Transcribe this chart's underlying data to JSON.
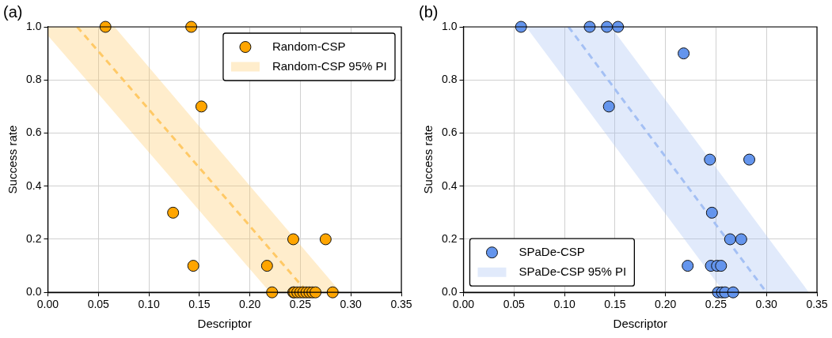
{
  "chart_data": [
    {
      "type": "scatter",
      "title": "(a)",
      "xlabel": "Descriptor",
      "ylabel": "Success rate",
      "xlim": [
        0,
        0.35
      ],
      "xticks": [
        {
          "value": 0,
          "label": "0.00"
        },
        {
          "value": 0.05,
          "label": "0.05"
        },
        {
          "value": 0.1,
          "label": "0.10"
        },
        {
          "value": 0.15,
          "label": "0.15"
        },
        {
          "value": 0.2,
          "label": "0.20"
        },
        {
          "value": 0.25,
          "label": "0.25"
        },
        {
          "value": 0.3,
          "label": "0.30"
        },
        {
          "value": 0.35,
          "label": "0.35"
        }
      ],
      "ylim": [
        0,
        1
      ],
      "yticks": [
        {
          "value": 0,
          "label": "0.0"
        },
        {
          "value": 0.2,
          "label": "0.2"
        },
        {
          "value": 0.4,
          "label": "0.4"
        },
        {
          "value": 0.6,
          "label": "0.6"
        },
        {
          "value": 0.8,
          "label": "0.8"
        },
        {
          "value": 1,
          "label": "1.0"
        }
      ],
      "grid": true,
      "legend": "top right",
      "series": [
        {
          "name": "Random-CSP 95% PI",
          "type": "line",
          "color": "#ffc966",
          "line_style": "dashed",
          "marker": "none",
          "x": [
            0,
            0.029,
            0.066,
            0.22,
            0.257,
            0.29
          ],
          "values": [
            null,
            1,
            0.838,
            0.162,
            0,
            null
          ],
          "lower": [
            0.967,
            0.84,
            0.677,
            0,
            0,
            0
          ],
          "upper": [
            1,
            1,
            1,
            0.312,
            0.147,
            0
          ]
        },
        {
          "name": "Random-CSP",
          "type": "scatter",
          "color": "#ffa500",
          "marker": "circle",
          "x": [
            0.057,
            0.142,
            0.152,
            0.124,
            0.144,
            0.217,
            0.243,
            0.275,
            0.222,
            0.243,
            0.244,
            0.247,
            0.25,
            0.253,
            0.256,
            0.259,
            0.262,
            0.265,
            0.282
          ],
          "values": [
            1,
            1,
            0.7,
            0.3,
            0.1,
            0.1,
            0.2,
            0.2,
            0,
            0,
            0,
            0,
            0,
            0,
            0,
            0,
            0,
            0,
            0
          ]
        }
      ]
    },
    {
      "type": "scatter",
      "title": "(b)",
      "xlabel": "Descriptor",
      "ylabel": "Success rate",
      "xlim": [
        0,
        0.35
      ],
      "xticks": [
        {
          "value": 0,
          "label": "0.00"
        },
        {
          "value": 0.05,
          "label": "0.05"
        },
        {
          "value": 0.1,
          "label": "0.10"
        },
        {
          "value": 0.15,
          "label": "0.15"
        },
        {
          "value": 0.2,
          "label": "0.20"
        },
        {
          "value": 0.25,
          "label": "0.25"
        },
        {
          "value": 0.3,
          "label": "0.30"
        },
        {
          "value": 0.35,
          "label": "0.35"
        }
      ],
      "ylim": [
        0,
        1
      ],
      "yticks": [
        {
          "value": 0,
          "label": "0.0"
        },
        {
          "value": 0.2,
          "label": "0.2"
        },
        {
          "value": 0.4,
          "label": "0.4"
        },
        {
          "value": 0.6,
          "label": "0.6"
        },
        {
          "value": 0.8,
          "label": "0.8"
        },
        {
          "value": 1,
          "label": "1.0"
        }
      ],
      "grid": true,
      "legend": "bottom left",
      "series": [
        {
          "name": "SPaDe-CSP 95% PI",
          "type": "line",
          "color": "#a4c0f4",
          "line_style": "dashed",
          "marker": "none",
          "x": [
            0.062,
            0.104,
            0.146,
            0.258,
            0.3,
            0.342
          ],
          "values": [
            null,
            1,
            0.786,
            0.214,
            0,
            null
          ],
          "lower": [
            1,
            0.786,
            0.571,
            0,
            0,
            0
          ],
          "upper": [
            1,
            1,
            1,
            0.429,
            0.214,
            0
          ]
        },
        {
          "name": "SPaDe-CSP",
          "type": "scatter",
          "color": "#6495ed",
          "marker": "circle",
          "x": [
            0.057,
            0.125,
            0.142,
            0.153,
            0.218,
            0.144,
            0.244,
            0.283,
            0.246,
            0.264,
            0.275,
            0.222,
            0.245,
            0.251,
            0.255,
            0.252,
            0.256,
            0.259,
            0.267
          ],
          "values": [
            1,
            1,
            1,
            1,
            0.9,
            0.7,
            0.5,
            0.5,
            0.3,
            0.2,
            0.2,
            0.1,
            0.1,
            0.1,
            0.1,
            0,
            0,
            0,
            0
          ]
        }
      ]
    }
  ]
}
